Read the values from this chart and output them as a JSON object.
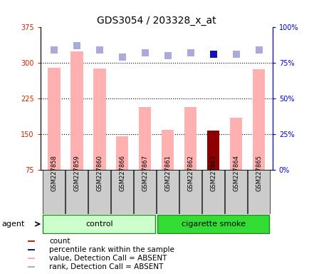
{
  "title": "GDS3054 / 203328_x_at",
  "samples": [
    "GSM227858",
    "GSM227859",
    "GSM227860",
    "GSM227866",
    "GSM227867",
    "GSM227861",
    "GSM227862",
    "GSM227863",
    "GSM227864",
    "GSM227865"
  ],
  "bar_values": [
    290,
    325,
    288,
    145,
    208,
    160,
    208,
    158,
    185,
    287
  ],
  "bar_colors": [
    "#ffb0b0",
    "#ffb0b0",
    "#ffb0b0",
    "#ffb0b0",
    "#ffb0b0",
    "#ffb0b0",
    "#ffb0b0",
    "#8b0000",
    "#ffb0b0",
    "#ffb0b0"
  ],
  "rank_values": [
    84,
    87,
    84,
    79,
    82,
    80,
    82,
    81,
    81,
    84
  ],
  "rank_colors": [
    "#aaaadd",
    "#aaaadd",
    "#aaaadd",
    "#aaaadd",
    "#aaaadd",
    "#aaaadd",
    "#aaaadd",
    "#1111bb",
    "#aaaadd",
    "#aaaadd"
  ],
  "left_ylim": [
    75,
    375
  ],
  "left_yticks": [
    75,
    150,
    225,
    300,
    375
  ],
  "right_ylim": [
    0,
    100
  ],
  "right_yticks": [
    0,
    25,
    50,
    75,
    100
  ],
  "right_yticklabels": [
    "0%",
    "25%",
    "50%",
    "75%",
    "100%"
  ],
  "left_ytick_color": "#cc2200",
  "right_ytick_color": "#0000cc",
  "control_count": 5,
  "smoke_count": 5,
  "control_label": "control",
  "smoke_label": "cigarette smoke",
  "agent_label": "agent",
  "control_color_light": "#ccffcc",
  "smoke_color_bright": "#33dd33",
  "group_border_color": "#228822",
  "legend_items": [
    {
      "color": "#cc2200",
      "label": "count"
    },
    {
      "color": "#1111bb",
      "label": "percentile rank within the sample"
    },
    {
      "color": "#ffb0b0",
      "label": "value, Detection Call = ABSENT"
    },
    {
      "color": "#aaaadd",
      "label": "rank, Detection Call = ABSENT"
    }
  ],
  "bar_width": 0.55,
  "rank_marker_size": 50,
  "tick_label_bg": "#cccccc",
  "plot_bg_color": "#ffffff",
  "grid_color": "black",
  "grid_linestyle": ":",
  "grid_linewidth": 0.8,
  "grid_values": [
    150,
    225,
    300
  ],
  "title_fontsize": 10,
  "tick_fontsize": 7,
  "sample_fontsize": 6,
  "legend_fontsize": 7.5,
  "agent_fontsize": 8
}
